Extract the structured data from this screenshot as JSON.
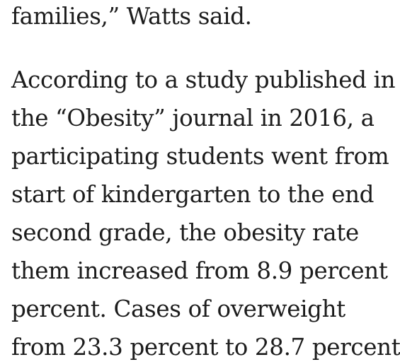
{
  "article": {
    "lead_paragraph": {
      "lines": [
        "families,” Watts said."
      ]
    },
    "body_paragraph": {
      "lines": [
        "According to a study published in",
        "the “Obesity” journal in 2016, a",
        "participating students went from",
        "start of kindergarten to the end",
        "second grade, the obesity rate",
        "them increased from 8.9 percent",
        "percent. Cases of overweight",
        "from 23.3 percent to 28.7 percent"
      ]
    }
  }
}
